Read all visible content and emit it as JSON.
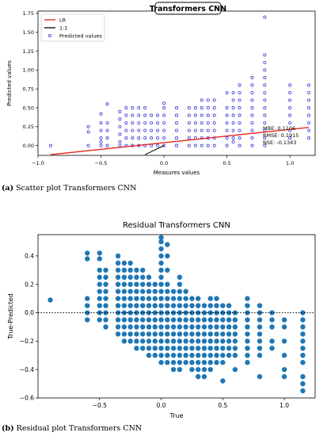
{
  "chart_data": [
    {
      "type": "scatter",
      "title": "Transformers CNN",
      "xlabel": "Measures values",
      "ylabel": "Predicted values",
      "xlim": [
        -1.0,
        1.2
      ],
      "ylim": [
        -0.13,
        1.78
      ],
      "xticks": [
        "−1.0",
        "−0.5",
        "0.0",
        "0.5",
        "1.0"
      ],
      "xtick_values": [
        -1.0,
        -0.5,
        0.0,
        0.5,
        1.0
      ],
      "yticks": [
        "0.00",
        "0.25",
        "0.50",
        "0.75",
        "1.00",
        "1.25",
        "1.50",
        "1.75"
      ],
      "ytick_values": [
        0,
        0.25,
        0.5,
        0.75,
        1.0,
        1.25,
        1.5,
        1.75
      ],
      "legend_position": "top-left",
      "legend": [
        "LR",
        "1:1",
        "Predicted values"
      ],
      "colors": {
        "points": "#1f1fd6",
        "lr": "#e8201c",
        "oneone": "#000000"
      },
      "lr_line": {
        "x": [
          -0.9,
          1.15
        ],
        "y": [
          -0.12,
          0.24
        ]
      },
      "one_to_one_line": {
        "x": [
          -0.15,
          0.0
        ],
        "y": [
          -0.12,
          0.0
        ]
      },
      "series": [
        {
          "name": "Predicted values",
          "columns": [
            {
              "x": -0.9,
              "y": [
                0.0
              ]
            },
            {
              "x": -0.6,
              "y": [
                0.0,
                0.18,
                0.25
              ]
            },
            {
              "x": -0.5,
              "y": [
                0.0,
                0.05,
                0.1,
                0.2,
                0.3,
                0.42
              ]
            },
            {
              "x": -0.45,
              "y": [
                0.0,
                0.1,
                0.2,
                0.3,
                0.55
              ]
            },
            {
              "x": -0.35,
              "y": [
                0.0,
                0.05,
                0.15,
                0.25,
                0.35,
                0.45
              ]
            },
            {
              "x": -0.3,
              "y": [
                0.0,
                0.1,
                0.2,
                0.3,
                0.4,
                0.5
              ]
            },
            {
              "x": -0.25,
              "y": [
                0.0,
                0.1,
                0.2,
                0.3,
                0.4,
                0.5
              ]
            },
            {
              "x": -0.2,
              "y": [
                0.0,
                0.1,
                0.2,
                0.3,
                0.4,
                0.5
              ]
            },
            {
              "x": -0.15,
              "y": [
                0.0,
                0.1,
                0.2,
                0.3,
                0.4,
                0.5
              ]
            },
            {
              "x": -0.1,
              "y": [
                0.0,
                0.1,
                0.2,
                0.3,
                0.4
              ]
            },
            {
              "x": -0.05,
              "y": [
                0.0,
                0.1,
                0.2,
                0.3,
                0.4
              ]
            },
            {
              "x": 0.0,
              "y": [
                0.0,
                0.1,
                0.2,
                0.3,
                0.4,
                0.5,
                0.56
              ]
            },
            {
              "x": 0.1,
              "y": [
                0.0,
                0.1,
                0.2,
                0.3,
                0.4,
                0.5
              ]
            },
            {
              "x": 0.2,
              "y": [
                0.0,
                0.1,
                0.2,
                0.3,
                0.4,
                0.5
              ]
            },
            {
              "x": 0.25,
              "y": [
                0.0,
                0.1,
                0.2,
                0.3,
                0.4,
                0.5
              ]
            },
            {
              "x": 0.3,
              "y": [
                0.0,
                0.1,
                0.2,
                0.3,
                0.4,
                0.5,
                0.6
              ]
            },
            {
              "x": 0.35,
              "y": [
                0.0,
                0.1,
                0.2,
                0.3,
                0.4,
                0.5,
                0.6
              ]
            },
            {
              "x": 0.4,
              "y": [
                0.0,
                0.1,
                0.2,
                0.3,
                0.4,
                0.5,
                0.6
              ]
            },
            {
              "x": 0.5,
              "y": [
                0.0,
                0.1,
                0.2,
                0.3,
                0.4,
                0.5,
                0.7
              ]
            },
            {
              "x": 0.55,
              "y": [
                0.05,
                0.1,
                0.2,
                0.3,
                0.4,
                0.5,
                0.6,
                0.7
              ]
            },
            {
              "x": 0.6,
              "y": [
                0.0,
                0.1,
                0.2,
                0.3,
                0.4,
                0.5,
                0.6,
                0.7,
                0.8
              ]
            },
            {
              "x": 0.7,
              "y": [
                0.0,
                0.1,
                0.2,
                0.3,
                0.4,
                0.5,
                0.6,
                0.7,
                0.8,
                0.9
              ]
            },
            {
              "x": 0.8,
              "y": [
                0.0,
                0.1,
                0.2,
                0.3,
                0.4,
                0.5,
                0.6,
                0.7,
                0.8,
                0.9,
                1.0,
                1.1,
                1.2,
                1.7
              ]
            },
            {
              "x": 1.0,
              "y": [
                0.1,
                0.2,
                0.3,
                0.4,
                0.5,
                0.6,
                0.7,
                0.8
              ]
            },
            {
              "x": 1.15,
              "y": [
                0.1,
                0.2,
                0.3,
                0.4,
                0.5,
                0.6,
                0.7,
                0.8
              ]
            }
          ]
        }
      ],
      "metrics_text": [
        "MBE: 0.1106",
        "RMSE: 0.1915",
        "NSE: -0.1343"
      ]
    },
    {
      "type": "scatter",
      "title": "Residual Transformers CNN",
      "xlabel": "True",
      "ylabel": "True-Predicted",
      "xlim": [
        -1.0,
        1.25
      ],
      "ylim": [
        -0.6,
        0.55
      ],
      "xticks": [
        "−0.5",
        "0.0",
        "0.5",
        "1.0"
      ],
      "xtick_values": [
        -0.5,
        0.0,
        0.5,
        1.0
      ],
      "yticks": [
        "−0.6",
        "−0.4",
        "−0.2",
        "0.0",
        "0.2",
        "0.4"
      ],
      "ytick_values": [
        -0.6,
        -0.4,
        -0.2,
        0.0,
        0.2,
        0.4
      ],
      "reference_line_y": 0.0,
      "colors": {
        "points": "#1f77b4",
        "reference": "#000000"
      },
      "series": [
        {
          "name": "",
          "columns": [
            {
              "x": -0.9,
              "y": [
                0.09
              ]
            },
            {
              "x": -0.6,
              "y": [
                -0.05,
                0.0,
                0.05,
                0.1,
                0.38,
                0.42
              ]
            },
            {
              "x": -0.5,
              "y": [
                -0.05,
                0.0,
                0.05,
                0.1,
                0.15,
                0.2,
                0.25,
                0.3,
                0.38,
                0.42
              ]
            },
            {
              "x": -0.45,
              "y": [
                -0.1,
                -0.05,
                0.0,
                0.05,
                0.1,
                0.15,
                0.2,
                0.25,
                0.3
              ]
            },
            {
              "x": -0.35,
              "y": [
                -0.15,
                -0.1,
                -0.05,
                0.0,
                0.05,
                0.1,
                0.15,
                0.2,
                0.25,
                0.3,
                0.35,
                0.4
              ]
            },
            {
              "x": -0.3,
              "y": [
                -0.2,
                -0.15,
                -0.1,
                -0.05,
                0.0,
                0.05,
                0.1,
                0.15,
                0.2,
                0.25,
                0.3,
                0.35
              ]
            },
            {
              "x": -0.25,
              "y": [
                -0.2,
                -0.15,
                -0.1,
                -0.05,
                0.0,
                0.05,
                0.1,
                0.15,
                0.2,
                0.25,
                0.3,
                0.35
              ]
            },
            {
              "x": -0.2,
              "y": [
                -0.25,
                -0.2,
                -0.15,
                -0.1,
                -0.05,
                0.0,
                0.05,
                0.1,
                0.15,
                0.2,
                0.25,
                0.3
              ]
            },
            {
              "x": -0.15,
              "y": [
                -0.25,
                -0.2,
                -0.15,
                -0.1,
                -0.05,
                0.0,
                0.05,
                0.1,
                0.15,
                0.2,
                0.25,
                0.3
              ]
            },
            {
              "x": -0.1,
              "y": [
                -0.3,
                -0.25,
                -0.2,
                -0.15,
                -0.1,
                -0.05,
                0.0,
                0.05,
                0.1,
                0.15,
                0.2,
                0.25
              ]
            },
            {
              "x": -0.05,
              "y": [
                -0.3,
                -0.25,
                -0.2,
                -0.15,
                -0.1,
                -0.05,
                0.0,
                0.05,
                0.1,
                0.15,
                0.2
              ]
            },
            {
              "x": 0.0,
              "y": [
                -0.35,
                -0.3,
                -0.25,
                -0.2,
                -0.15,
                -0.1,
                -0.05,
                0.0,
                0.05,
                0.1,
                0.15,
                0.2,
                0.25,
                0.3,
                0.35,
                0.4,
                0.45,
                0.5,
                0.53
              ]
            },
            {
              "x": 0.05,
              "y": [
                -0.35,
                -0.3,
                -0.25,
                -0.2,
                -0.15,
                -0.1,
                -0.05,
                0.0,
                0.05,
                0.1,
                0.15,
                0.2,
                0.3,
                0.4,
                0.48
              ]
            },
            {
              "x": 0.1,
              "y": [
                -0.4,
                -0.35,
                -0.3,
                -0.25,
                -0.2,
                -0.15,
                -0.1,
                -0.05,
                0.0,
                0.05,
                0.1,
                0.15
              ]
            },
            {
              "x": 0.15,
              "y": [
                -0.4,
                -0.35,
                -0.3,
                -0.25,
                -0.2,
                -0.15,
                -0.1,
                -0.05,
                0.0,
                0.05,
                0.1,
                0.15,
                0.2,
                0.25
              ]
            },
            {
              "x": 0.2,
              "y": [
                -0.35,
                -0.3,
                -0.25,
                -0.2,
                -0.15,
                -0.1,
                -0.05,
                0.0,
                0.05,
                0.1,
                0.15
              ]
            },
            {
              "x": 0.25,
              "y": [
                -0.4,
                -0.35,
                -0.3,
                -0.25,
                -0.2,
                -0.15,
                -0.1,
                -0.05,
                0.0,
                0.05,
                0.1
              ]
            },
            {
              "x": 0.3,
              "y": [
                -0.45,
                -0.4,
                -0.35,
                -0.3,
                -0.25,
                -0.2,
                -0.15,
                -0.1,
                -0.05,
                0.0,
                0.05,
                0.1
              ]
            },
            {
              "x": 0.35,
              "y": [
                -0.45,
                -0.4,
                -0.35,
                -0.3,
                -0.25,
                -0.2,
                -0.15,
                -0.1,
                -0.05,
                0.0,
                0.05
              ]
            },
            {
              "x": 0.4,
              "y": [
                -0.4,
                -0.35,
                -0.3,
                -0.25,
                -0.2,
                -0.15,
                -0.1,
                -0.05,
                0.0,
                0.05,
                0.1
              ]
            },
            {
              "x": 0.45,
              "y": [
                -0.35,
                -0.3,
                -0.25,
                -0.2,
                -0.15,
                -0.1,
                -0.05,
                0.0,
                0.05,
                0.1
              ]
            },
            {
              "x": 0.5,
              "y": [
                -0.48,
                -0.35,
                -0.3,
                -0.25,
                -0.2,
                -0.15,
                -0.1,
                -0.05,
                0.0,
                0.05
              ]
            },
            {
              "x": 0.55,
              "y": [
                -0.3,
                -0.25,
                -0.2,
                -0.15,
                -0.1,
                -0.05,
                0.0,
                0.05
              ]
            },
            {
              "x": 0.6,
              "y": [
                -0.4,
                -0.3,
                -0.25,
                -0.2,
                -0.15,
                -0.1,
                -0.05,
                0.0
              ]
            },
            {
              "x": 0.7,
              "y": [
                -0.35,
                -0.3,
                -0.25,
                -0.2,
                -0.15,
                -0.1,
                -0.05,
                0.0,
                0.05,
                0.1
              ]
            },
            {
              "x": 0.8,
              "y": [
                -0.45,
                -0.3,
                -0.25,
                -0.2,
                -0.15,
                -0.1,
                -0.05,
                0.0,
                0.05
              ]
            },
            {
              "x": 0.9,
              "y": [
                -0.25,
                -0.2,
                -0.1,
                -0.05,
                0.0
              ]
            },
            {
              "x": 1.0,
              "y": [
                -0.45,
                -0.4,
                -0.3,
                -0.2,
                -0.1,
                -0.05
              ]
            },
            {
              "x": 1.15,
              "y": [
                -0.55,
                -0.5,
                -0.45,
                -0.35,
                -0.3,
                -0.25,
                -0.2,
                -0.15,
                -0.1,
                -0.05,
                0.0
              ]
            }
          ]
        }
      ]
    }
  ],
  "captions": {
    "a_label": "(a)",
    "a_text": " Scatter plot Transformers CNN",
    "b_label": "(b)",
    "b_text": " Residual plot Transformers CNN"
  }
}
